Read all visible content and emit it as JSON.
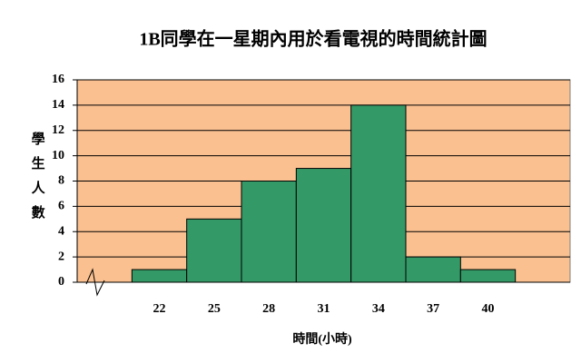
{
  "chart_data": {
    "type": "bar",
    "title": "1B同學在一星期內用於看電視的時間統計圖",
    "x_label": "時間(小時)",
    "y_label": "學生人數",
    "categories": [
      null,
      22,
      25,
      28,
      31,
      34,
      37,
      40,
      null
    ],
    "values": [
      null,
      1,
      5,
      8,
      9,
      14,
      2,
      1,
      null
    ],
    "color": "#339966",
    "background": "#fac090",
    "ylim": [
      0,
      16
    ],
    "yticks": [
      0,
      2,
      4,
      6,
      8,
      10,
      12,
      14,
      16
    ],
    "grid": true
  }
}
